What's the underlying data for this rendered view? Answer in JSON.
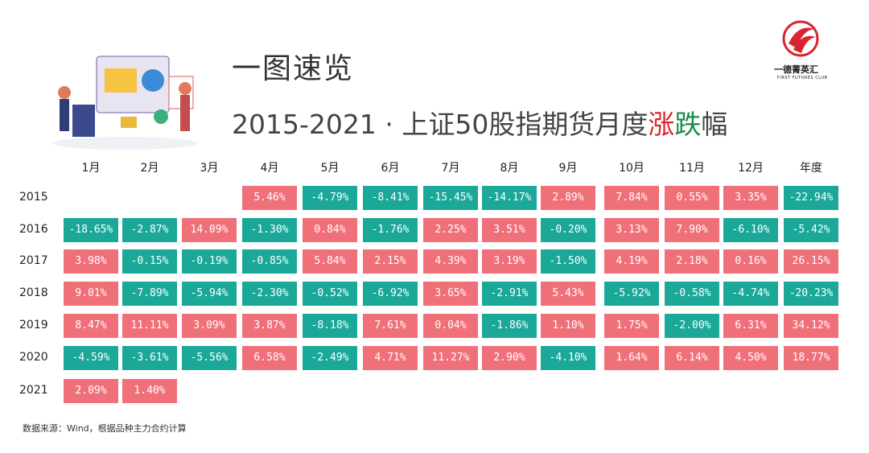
{
  "header": {
    "title": "一图速览",
    "subtitle": [
      {
        "text": "2015-2021 · 上证50股指期货月度",
        "color": "#444444"
      },
      {
        "text": "涨",
        "color": "#d9252f"
      },
      {
        "text": "跌",
        "color": "#1a8a4a"
      },
      {
        "text": "幅",
        "color": "#444444"
      }
    ],
    "logo": {
      "name": "一德菁英汇",
      "tagline": "FIRST FUTURES CLUB"
    }
  },
  "table": {
    "columns": [
      "1月",
      "2月",
      "3月",
      "4月",
      "5月",
      "6月",
      "7月",
      "8月",
      "9月",
      "10月",
      "11月",
      "12月",
      "年度"
    ],
    "colors": {
      "up": "#f0707a",
      "down": "#1ba899"
    },
    "rows": [
      {
        "year": "2015",
        "cells": [
          null,
          null,
          null,
          "5.46%",
          "-4.79%",
          "-8.41%",
          "-15.45%",
          "-14.17%",
          "2.89%",
          "7.84%",
          "0.55%",
          "3.35%",
          "-22.94%"
        ]
      },
      {
        "year": "2016",
        "cells": [
          "-18.65%",
          "-2.87%",
          "14.09%",
          "-1.30%",
          "0.84%",
          "-1.76%",
          "2.25%",
          "3.51%",
          "-0.20%",
          "3.13%",
          "7.90%",
          "-6.10%",
          "-5.42%"
        ]
      },
      {
        "year": "2017",
        "cells": [
          "3.98%",
          "-0.15%",
          "-0.19%",
          "-0.85%",
          "5.84%",
          "2.15%",
          "4.39%",
          "3.19%",
          "-1.50%",
          "4.19%",
          "2.18%",
          "0.16%",
          "26.15%"
        ]
      },
      {
        "year": "2018",
        "cells": [
          "9.01%",
          "-7.89%",
          "-5.94%",
          "-2.30%",
          "-0.52%",
          "-6.92%",
          "3.65%",
          "-2.91%",
          "5.43%",
          "-5.92%",
          "-0.58%",
          "-4.74%",
          "-20.23%"
        ]
      },
      {
        "year": "2019",
        "cells": [
          "8.47%",
          "11.11%",
          "3.09%",
          "3.87%",
          "-8.18%",
          "7.61%",
          "0.04%",
          "-1.86%",
          "1.10%",
          "1.75%",
          "-2.00%",
          "6.31%",
          "34.12%"
        ]
      },
      {
        "year": "2020",
        "cells": [
          "-4.59%",
          "-3.61%",
          "-5.56%",
          "6.58%",
          "-2.49%",
          "4.71%",
          "11.27%",
          "2.90%",
          "-4.10%",
          "1.64%",
          "6.14%",
          "4.50%",
          "18.77%"
        ]
      },
      {
        "year": "2021",
        "cells": [
          "2.09%",
          "1.40%"
        ]
      }
    ]
  },
  "footer": {
    "source": "数据来源：Wind，根据品种主力合约计算"
  }
}
